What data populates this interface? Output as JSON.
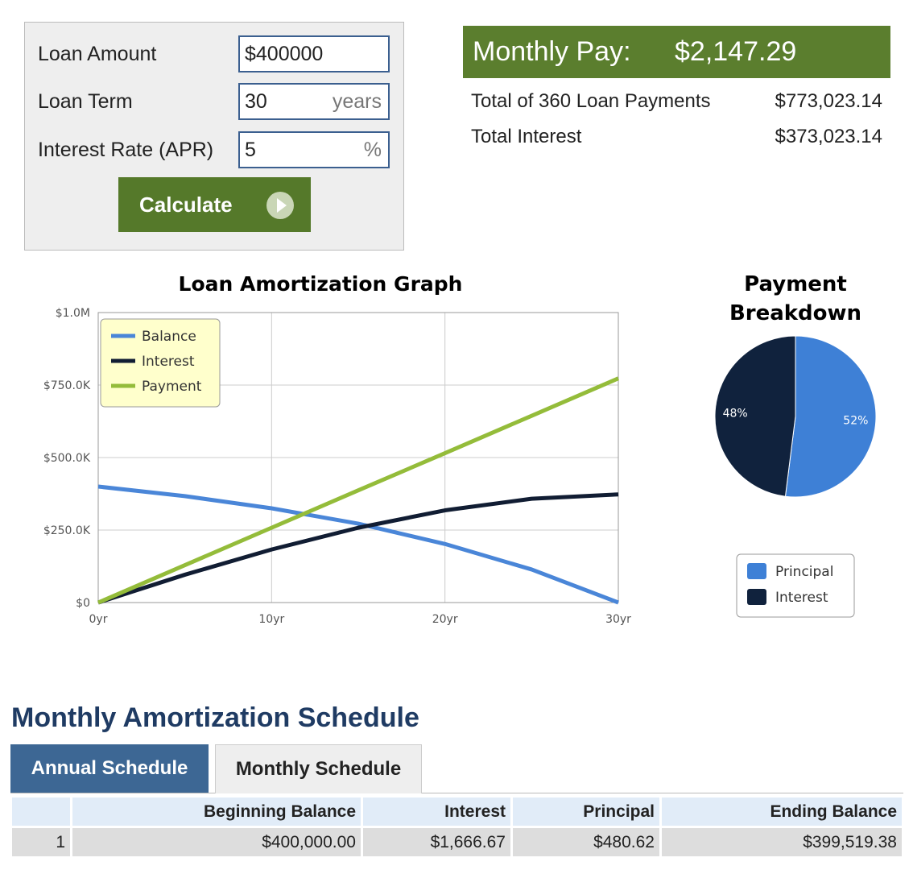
{
  "form": {
    "fields": [
      {
        "label": "Loan Amount",
        "value": "$400000"
      },
      {
        "label": "Loan Term",
        "value": "30",
        "unit": "years"
      },
      {
        "label": "Interest Rate (APR)",
        "value": "5",
        "unit": "%"
      }
    ],
    "button": "Calculate"
  },
  "results": {
    "monthly_label": "Monthly Pay:",
    "monthly_value": "$2,147.29",
    "rows": [
      {
        "label": "Total of 360 Loan Payments",
        "value": "$773,023.14"
      },
      {
        "label": "Total Interest",
        "value": "$373,023.14"
      }
    ]
  },
  "chart_data": [
    {
      "type": "line",
      "title": "Loan Amortization Graph",
      "x": [
        0,
        5,
        10,
        15,
        20,
        25,
        30
      ],
      "xlim": [
        0,
        30
      ],
      "xticks": [
        {
          "value": 0,
          "label": "0yr"
        },
        {
          "value": 10,
          "label": "10yr"
        },
        {
          "value": 20,
          "label": "20yr"
        },
        {
          "value": 30,
          "label": "30yr"
        }
      ],
      "ylim": [
        0,
        1000000
      ],
      "yticks": [
        {
          "value": 0,
          "label": "$0"
        },
        {
          "value": 250000,
          "label": "$250.0K"
        },
        {
          "value": 500000,
          "label": "$500.0K"
        },
        {
          "value": 750000,
          "label": "$750.0K"
        },
        {
          "value": 1000000,
          "label": "$1.0M"
        }
      ],
      "grid": true,
      "legend": "upper-left",
      "series": [
        {
          "name": "Balance",
          "color": "#4a86d8",
          "values": [
            400000,
            367000,
            325000,
            272000,
            202000,
            114000,
            0
          ]
        },
        {
          "name": "Interest",
          "color": "#111d33",
          "values": [
            0,
            96000,
            183000,
            258000,
            318000,
            358000,
            373000
          ]
        },
        {
          "name": "Payment",
          "color": "#94bc3a",
          "values": [
            0,
            129000,
            258000,
            387000,
            515000,
            644000,
            773000
          ]
        }
      ]
    },
    {
      "type": "pie",
      "title": "Payment Breakdown",
      "categories": [
        "Principal",
        "Interest"
      ],
      "values": [
        52,
        48
      ],
      "value_labels": [
        "52%",
        "48%"
      ],
      "colors": [
        "#3e80d6",
        "#10223d"
      ]
    }
  ],
  "schedule": {
    "title": "Monthly Amortization Schedule",
    "tabs": [
      "Annual Schedule",
      "Monthly Schedule"
    ],
    "columns": [
      "Beginning Balance",
      "Interest",
      "Principal",
      "Ending Balance"
    ],
    "rows": [
      [
        "1",
        "$400,000.00",
        "$1,666.67",
        "$480.62",
        "$399,519.38"
      ]
    ]
  }
}
